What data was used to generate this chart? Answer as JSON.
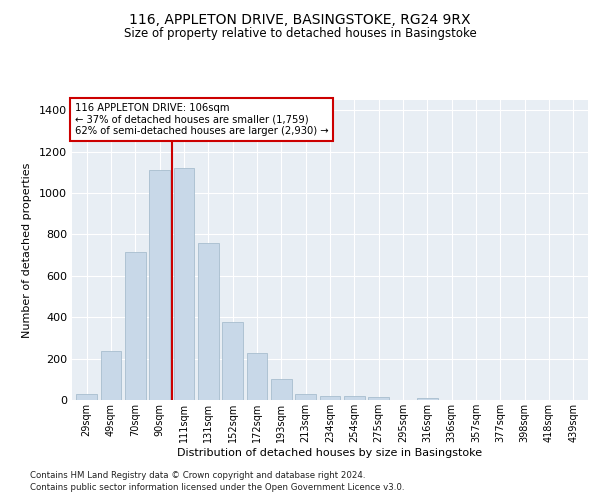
{
  "title": "116, APPLETON DRIVE, BASINGSTOKE, RG24 9RX",
  "subtitle": "Size of property relative to detached houses in Basingstoke",
  "xlabel": "Distribution of detached houses by size in Basingstoke",
  "ylabel": "Number of detached properties",
  "bar_labels": [
    "29sqm",
    "49sqm",
    "70sqm",
    "90sqm",
    "111sqm",
    "131sqm",
    "152sqm",
    "172sqm",
    "193sqm",
    "213sqm",
    "234sqm",
    "254sqm",
    "275sqm",
    "295sqm",
    "316sqm",
    "336sqm",
    "357sqm",
    "377sqm",
    "398sqm",
    "418sqm",
    "439sqm"
  ],
  "bar_values": [
    30,
    235,
    715,
    1110,
    1120,
    760,
    375,
    225,
    100,
    30,
    20,
    18,
    15,
    0,
    12,
    0,
    0,
    0,
    0,
    0,
    0
  ],
  "bar_color": "#c8d8e8",
  "bar_edge_color": "#a8bece",
  "vline_color": "#cc0000",
  "vline_pos": 3.5,
  "annotation_title": "116 APPLETON DRIVE: 106sqm",
  "annotation_line1": "← 37% of detached houses are smaller (1,759)",
  "annotation_line2": "62% of semi-detached houses are larger (2,930) →",
  "annotation_box_color": "#ffffff",
  "annotation_box_edge": "#cc0000",
  "ylim": [
    0,
    1450
  ],
  "yticks": [
    0,
    200,
    400,
    600,
    800,
    1000,
    1200,
    1400
  ],
  "bg_color": "#e8eef4",
  "footnote1": "Contains HM Land Registry data © Crown copyright and database right 2024.",
  "footnote2": "Contains public sector information licensed under the Open Government Licence v3.0."
}
